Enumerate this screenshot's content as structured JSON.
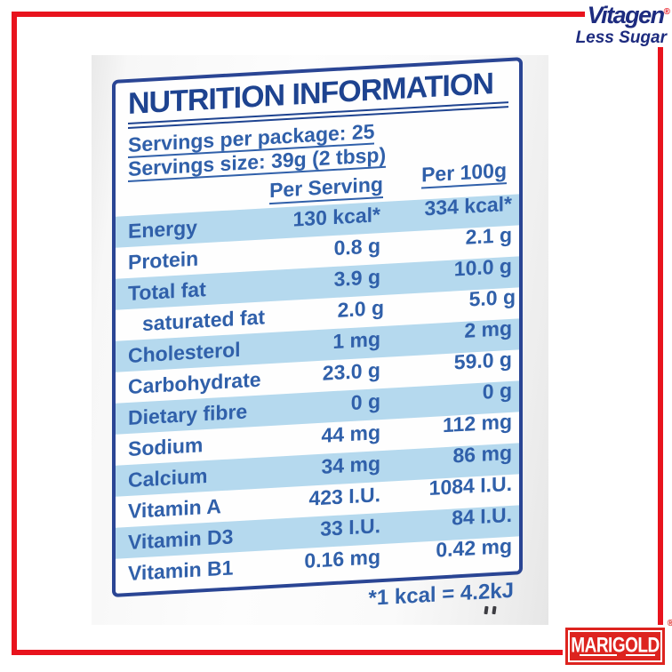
{
  "colors": {
    "frame_red": "#e8131d",
    "label_border_blue": "#2a4594",
    "stripe_blue": "#b5d9ee",
    "text_blue": "#3060aa",
    "title_blue": "#1e4390",
    "logo_navy": "#1d2b7f",
    "marigold_red": "#dd241f"
  },
  "brand": {
    "name": "Vitagen",
    "registered": "®",
    "tagline": "Less Sugar"
  },
  "footer_brand": {
    "name": "MARIGOLD",
    "registered": "®"
  },
  "label": {
    "title": "NUTRITION INFORMATION",
    "servings_per_package": "Servings per package: 25",
    "serving_size": "Servings size: 39g (2 tbsp)",
    "col_per_serving": "Per Serving",
    "col_per_100g": "Per 100g",
    "footnote": "*1 kcal = 4.2kJ",
    "rows": [
      {
        "name": "Energy",
        "serving": "130 kcal*",
        "per100": "334 kcal*"
      },
      {
        "name": "Protein",
        "serving": "0.8 g",
        "per100": "2.1 g"
      },
      {
        "name": "Total fat",
        "serving": "3.9 g",
        "per100": "10.0 g"
      },
      {
        "name": "saturated fat",
        "serving": "2.0 g",
        "per100": "5.0 g"
      },
      {
        "name": "Cholesterol",
        "serving": "1 mg",
        "per100": "2 mg"
      },
      {
        "name": "Carbohydrate",
        "serving": "23.0 g",
        "per100": "59.0 g"
      },
      {
        "name": "Dietary fibre",
        "serving": "0 g",
        "per100": "0 g"
      },
      {
        "name": "Sodium",
        "serving": "44 mg",
        "per100": "112 mg"
      },
      {
        "name": "Calcium",
        "serving": "34 mg",
        "per100": "86 mg"
      },
      {
        "name": "Vitamin A",
        "serving": "423 I.U.",
        "per100": "1084 I.U."
      },
      {
        "name": "Vitamin D3",
        "serving": "33 I.U.",
        "per100": "84 I.U."
      },
      {
        "name": "Vitamin B1",
        "serving": "0.16 mg",
        "per100": "0.42 mg"
      }
    ]
  }
}
